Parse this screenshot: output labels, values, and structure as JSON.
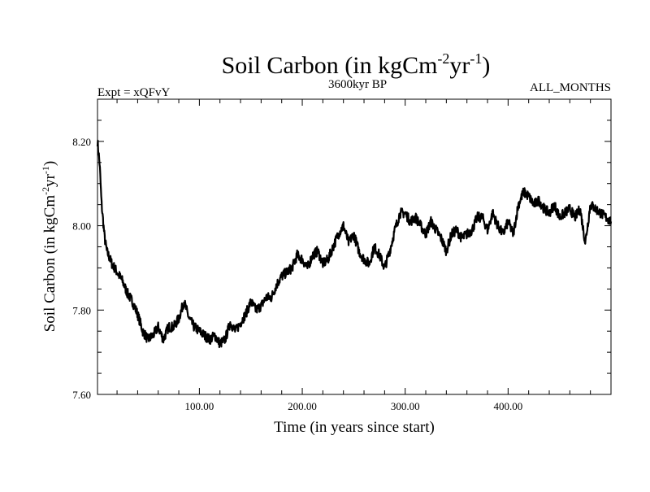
{
  "chart_data": {
    "type": "line",
    "title": "Soil Carbon (in kgCm⁻²yr⁻¹)",
    "title_main": "Soil Carbon (in kgCm",
    "title_sup1": "-2",
    "title_mid": "yr",
    "title_sup2": "-1",
    "title_end": ")",
    "subtitle_left": "Expt = xQFvY",
    "subtitle_center": "3600kyr BP",
    "subtitle_right": "ALL_MONTHS",
    "xlabel": "Time (in years since start)",
    "ylabel_main": "Soil Carbon (in kgCm",
    "ylabel_sup1": "-2",
    "ylabel_mid": "yr",
    "ylabel_sup2": "-1",
    "ylabel_end": ")",
    "xlim": [
      1,
      500
    ],
    "ylim": [
      7.6,
      8.3
    ],
    "x_ticks": [
      100,
      200,
      300,
      400
    ],
    "x_tick_labels": [
      "100.00",
      "200.00",
      "300.00",
      "400.00"
    ],
    "y_ticks": [
      7.6,
      7.8,
      8.0,
      8.2
    ],
    "y_tick_labels": [
      "7.60",
      "7.80",
      "8.00",
      "8.20"
    ],
    "series": [
      {
        "name": "Soil Carbon",
        "x": [
          1,
          3,
          5,
          8,
          10,
          15,
          20,
          25,
          30,
          35,
          40,
          45,
          50,
          55,
          60,
          65,
          70,
          75,
          80,
          85,
          90,
          95,
          100,
          105,
          110,
          115,
          120,
          125,
          130,
          135,
          140,
          145,
          150,
          155,
          160,
          165,
          170,
          175,
          180,
          185,
          190,
          195,
          200,
          205,
          210,
          215,
          220,
          225,
          230,
          235,
          240,
          245,
          250,
          255,
          260,
          265,
          270,
          275,
          280,
          285,
          290,
          295,
          300,
          305,
          310,
          315,
          320,
          325,
          330,
          335,
          340,
          345,
          350,
          355,
          360,
          365,
          370,
          375,
          380,
          385,
          390,
          395,
          400,
          405,
          410,
          415,
          420,
          425,
          430,
          435,
          440,
          445,
          450,
          455,
          460,
          465,
          470,
          475,
          480,
          485,
          490,
          495,
          500
        ],
        "values": [
          8.2,
          8.15,
          8.05,
          7.97,
          7.94,
          7.91,
          7.89,
          7.87,
          7.84,
          7.82,
          7.79,
          7.75,
          7.73,
          7.74,
          7.76,
          7.73,
          7.76,
          7.76,
          7.78,
          7.82,
          7.78,
          7.76,
          7.75,
          7.74,
          7.73,
          7.74,
          7.72,
          7.73,
          7.77,
          7.75,
          7.77,
          7.79,
          7.82,
          7.8,
          7.81,
          7.83,
          7.83,
          7.86,
          7.88,
          7.89,
          7.9,
          7.93,
          7.92,
          7.9,
          7.93,
          7.94,
          7.91,
          7.92,
          7.95,
          7.98,
          8.0,
          7.96,
          7.98,
          7.94,
          7.92,
          7.91,
          7.95,
          7.93,
          7.9,
          7.94,
          7.99,
          8.03,
          8.03,
          8.01,
          8.02,
          8.0,
          7.98,
          8.01,
          7.99,
          7.97,
          7.94,
          7.98,
          7.99,
          7.97,
          7.98,
          7.99,
          8.02,
          8.02,
          7.99,
          8.03,
          8.0,
          7.98,
          8.01,
          7.98,
          8.05,
          8.08,
          8.07,
          8.05,
          8.06,
          8.04,
          8.03,
          8.05,
          8.02,
          8.03,
          8.04,
          8.02,
          8.04,
          7.96,
          8.05,
          8.04,
          8.03,
          8.02,
          8.01
        ]
      }
    ]
  }
}
